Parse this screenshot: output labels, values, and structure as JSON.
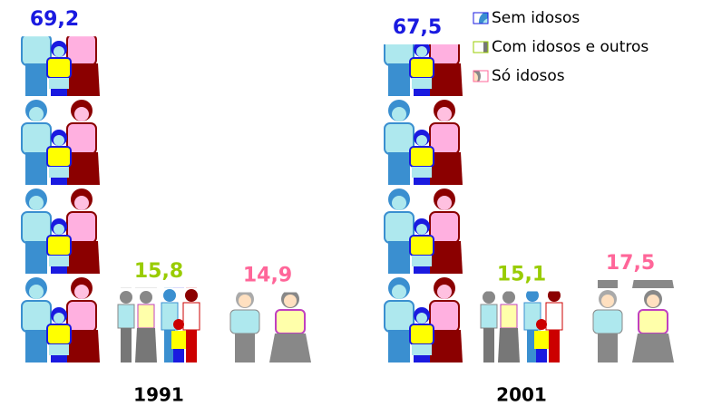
{
  "chart_data": {
    "type": "bar",
    "categories": [
      "1991",
      "2001"
    ],
    "series": [
      {
        "name": "Sem idosos",
        "color": "#1a1ae0",
        "values": [
          69.2,
          67.5
        ],
        "value_labels": [
          "69,2",
          "67,5"
        ]
      },
      {
        "name": "Com idosos e outros",
        "color": "#99cc00",
        "values": [
          15.8,
          15.1
        ],
        "value_labels": [
          "15,8",
          "15,1"
        ]
      },
      {
        "name": "Só idosos",
        "color": "#ff6699",
        "values": [
          14.9,
          17.5
        ],
        "value_labels": [
          "14,9",
          "17,5"
        ]
      }
    ],
    "legend": "top-right"
  }
}
